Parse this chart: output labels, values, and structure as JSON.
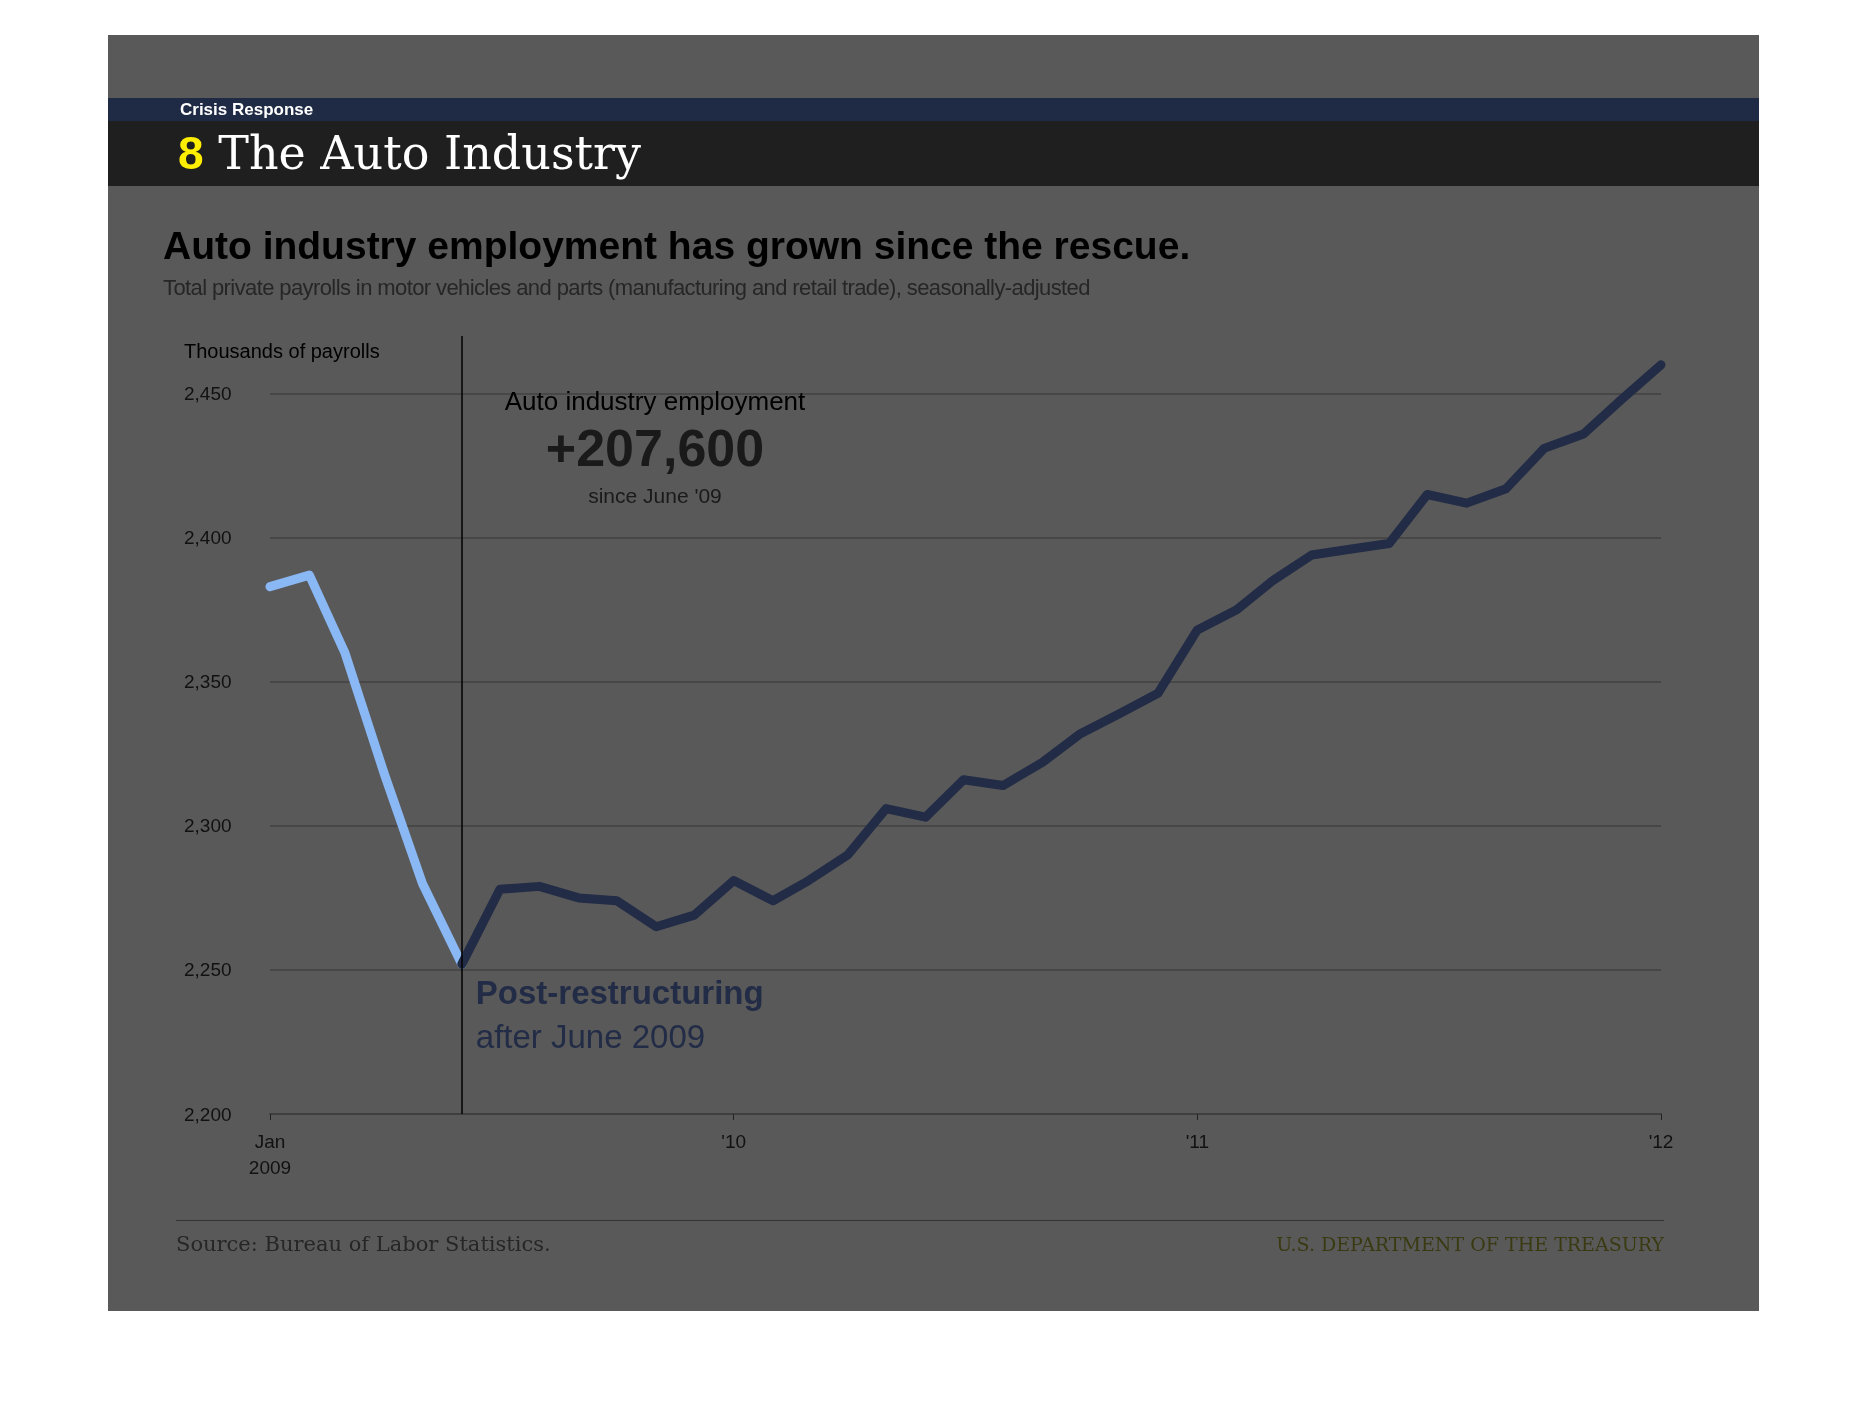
{
  "chart_data": {
    "type": "line",
    "title": "Auto industry employment has grown since the rescue.",
    "subtitle": "Total private payrolls in motor vehicles and parts (manufacturing and retail trade), seasonally-adjusted",
    "ylabel": "Thousands of payrolls",
    "annotations": [
      "Crisis Response",
      "8 The Auto Industry",
      "Auto industry employment",
      "+207,600",
      "since June '09",
      {
        "text": "Post-restructuring",
        "x": "2009-06",
        "y": 2252
      },
      {
        "text": "after June 2009",
        "x": "2009-06",
        "y": 2252
      },
      "Source: Bureau of Labor Statistics.",
      "U.S. DEPARTMENT OF THE TREASURY"
    ],
    "series": [
      {
        "color": "#8ab8f5",
        "x": [
          "2009-01",
          "2009-02",
          "2009-03",
          "2009-04",
          "2009-05",
          "2009-06"
        ],
        "values": [
          2383,
          2387,
          2360,
          2318,
          2280,
          2252
        ]
      },
      {
        "color": "#222c46",
        "x": [
          "2009-06",
          "2009-07",
          "2009-08",
          "2009-09",
          "2009-10",
          "2009-11",
          "2009-12",
          "2010-01",
          "2010-02",
          "2010-03",
          "2010-04",
          "2010-05",
          "2010-06",
          "2010-07",
          "2010-08",
          "2010-09",
          "2010-10",
          "2010-11",
          "2010-12",
          "2011-01",
          "2011-02",
          "2011-03",
          "2011-04",
          "2011-05",
          "2011-06",
          "2011-07",
          "2011-08",
          "2011-09",
          "2011-10",
          "2011-11",
          "2011-12",
          "2012-01"
        ],
        "values": [
          2252,
          2278,
          2279,
          2275,
          2274,
          2265,
          2269,
          2281,
          2274,
          2281,
          2290,
          2306,
          2303,
          2316,
          2314,
          2322,
          2332,
          2339,
          2346,
          2368,
          2375,
          2385,
          2394,
          2396,
          2398,
          2415,
          2412,
          2417,
          2431,
          2436,
          2448,
          2460
        ]
      }
    ],
    "xlim": [
      "2009-01",
      "2012-01"
    ],
    "xticks": [
      {
        "value": "2009-01",
        "label": "Jan\n2009"
      },
      {
        "value": "2010-01",
        "label": "'10"
      },
      {
        "value": "2011-01",
        "label": "'11"
      },
      {
        "value": "2012-01",
        "label": "'12"
      }
    ],
    "ylim": [
      2200,
      2470
    ],
    "yticks": [
      {
        "value": 2200,
        "label": "2,200"
      },
      {
        "value": 2250,
        "label": "2,250"
      },
      {
        "value": 2300,
        "label": "2,300"
      },
      {
        "value": 2350,
        "label": "2,350"
      },
      {
        "value": 2400,
        "label": "2,400"
      },
      {
        "value": 2450,
        "label": "2,450"
      }
    ],
    "grid": "y",
    "line_style": "solid",
    "ref_lines": [
      {
        "axis": "x",
        "value": "2009-06",
        "color": "#000000",
        "line_style": "solid"
      }
    ]
  }
}
